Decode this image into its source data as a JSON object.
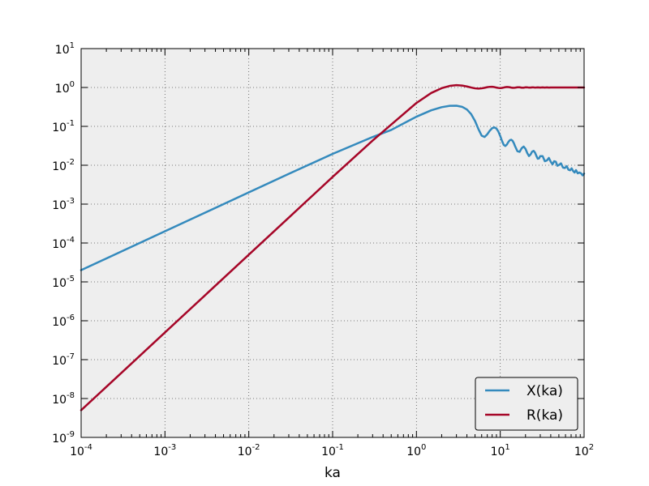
{
  "chart_data": {
    "type": "line",
    "title": "",
    "xlabel": "ka",
    "ylabel": "",
    "xscale": "log",
    "yscale": "log",
    "xlim": [
      0.0001,
      100
    ],
    "ylim": [
      1e-09,
      10
    ],
    "grid": true,
    "legend_position": "lower-right",
    "background_color": "#eeeeee",
    "x_ticks": [
      {
        "base": "10",
        "exp": "-4"
      },
      {
        "base": "10",
        "exp": "-3"
      },
      {
        "base": "10",
        "exp": "-2"
      },
      {
        "base": "10",
        "exp": "-1"
      },
      {
        "base": "10",
        "exp": "0"
      },
      {
        "base": "10",
        "exp": "1"
      },
      {
        "base": "10",
        "exp": "2"
      }
    ],
    "y_ticks": [
      {
        "base": "10",
        "exp": "-9"
      },
      {
        "base": "10",
        "exp": "-8"
      },
      {
        "base": "10",
        "exp": "-7"
      },
      {
        "base": "10",
        "exp": "-6"
      },
      {
        "base": "10",
        "exp": "-5"
      },
      {
        "base": "10",
        "exp": "-4"
      },
      {
        "base": "10",
        "exp": "-3"
      },
      {
        "base": "10",
        "exp": "-2"
      },
      {
        "base": "10",
        "exp": "-1"
      },
      {
        "base": "10",
        "exp": "0"
      },
      {
        "base": "10",
        "exp": "1"
      }
    ],
    "series": [
      {
        "name": "X(ka)",
        "color": "#348abd",
        "x": [
          0.0001,
          0.0003,
          0.001,
          0.003,
          0.01,
          0.03,
          0.1,
          0.3,
          0.5,
          1,
          1.5,
          2,
          2.5,
          3,
          3.5,
          4,
          4.5,
          5,
          5.5,
          6,
          6.5,
          7,
          7.5,
          8,
          8.5,
          9,
          9.5,
          10,
          10.5,
          11,
          11.5,
          12,
          12.5,
          13,
          13.5,
          14,
          14.5,
          15,
          16,
          17,
          18,
          19,
          20,
          21,
          22,
          23,
          24,
          25,
          26,
          27,
          28,
          29,
          30,
          32,
          34,
          36,
          38,
          40,
          42,
          44,
          46,
          48,
          50,
          53,
          56,
          59,
          62,
          65,
          68,
          71,
          74,
          77,
          80,
          84,
          88,
          92,
          96,
          100
        ],
        "values": [
          2e-05,
          6e-05,
          0.0002,
          0.0006,
          0.002,
          0.006,
          0.0196,
          0.0532,
          0.0808,
          0.1774,
          0.2587,
          0.3116,
          0.3372,
          0.3395,
          0.3187,
          0.2713,
          0.2057,
          0.1372,
          0.0843,
          0.0576,
          0.0534,
          0.0627,
          0.0774,
          0.0899,
          0.0941,
          0.0878,
          0.0732,
          0.0562,
          0.0419,
          0.0334,
          0.0312,
          0.0342,
          0.0397,
          0.044,
          0.0452,
          0.0426,
          0.0373,
          0.0311,
          0.023,
          0.0221,
          0.0274,
          0.0302,
          0.0264,
          0.0205,
          0.0172,
          0.019,
          0.0224,
          0.0234,
          0.021,
          0.0173,
          0.0147,
          0.015,
          0.0172,
          0.0172,
          0.0127,
          0.0133,
          0.0154,
          0.0123,
          0.0106,
          0.0127,
          0.0123,
          0.0097,
          0.0101,
          0.0112,
          0.0087,
          0.0085,
          0.0095,
          0.0077,
          0.0074,
          0.0083,
          0.0071,
          0.0065,
          0.0075,
          0.0062,
          0.0065,
          0.0062,
          0.0055,
          0.0061
        ]
      },
      {
        "name": "R(ka)",
        "color": "#a60628",
        "x": [
          0.0001,
          0.0003,
          0.001,
          0.003,
          0.01,
          0.03,
          0.1,
          0.3,
          0.5,
          1,
          1.5,
          2,
          2.5,
          3,
          3.5,
          4,
          4.5,
          5,
          5.5,
          6,
          6.5,
          7,
          7.5,
          8,
          8.5,
          9,
          9.5,
          10,
          10.5,
          11,
          11.5,
          12,
          12.5,
          13,
          13.5,
          14,
          14.5,
          15,
          16,
          17,
          18,
          19,
          20,
          21,
          22,
          23,
          24,
          25,
          26,
          27,
          28,
          29,
          30,
          32,
          34,
          36,
          38,
          40,
          42,
          44,
          46,
          48,
          50,
          53,
          56,
          59,
          62,
          65,
          68,
          71,
          74,
          77,
          80,
          84,
          88,
          92,
          96,
          100
        ],
        "values": [
          5e-09,
          4.5e-08,
          5e-07,
          4.5e-06,
          5e-05,
          0.00045,
          0.005,
          0.0431,
          0.1111,
          0.4,
          0.7214,
          0.9603,
          1.0992,
          1.1447,
          1.1209,
          1.0608,
          0.996,
          0.9502,
          0.9353,
          0.9502,
          0.9832,
          1.0179,
          1.0395,
          1.0404,
          1.0223,
          0.9954,
          0.9733,
          0.9662,
          0.9763,
          0.9975,
          1.018,
          1.0285,
          1.0256,
          1.0119,
          0.9945,
          0.9821,
          0.9801,
          0.9885,
          1.0139,
          1.0133,
          0.9898,
          0.9876,
          1.009,
          1.0089,
          0.9913,
          0.9939,
          1.0084,
          1.0032,
          0.9918,
          0.9977,
          1.0072,
          1.0008,
          0.9938,
          1.0043,
          0.9955,
          1.0035,
          0.9961,
          1.0023,
          0.9969,
          1.002,
          0.9971,
          1.0019,
          0.9974,
          1.0009,
          0.9994,
          0.9995,
          1.001,
          0.9984,
          1.0015,
          0.9985,
          1.0012,
          0.9988,
          1.0008,
          0.9992,
          1.0007,
          0.9994,
          1.0005,
          0.9996
        ]
      }
    ]
  }
}
